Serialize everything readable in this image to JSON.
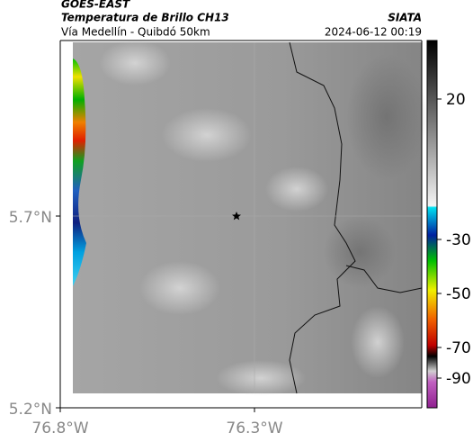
{
  "header": {
    "title": "GOES-EAST",
    "subtitle": "Temperatura de Brillo CH13",
    "location": "Vía Medellín - Quibdó 50km",
    "source": "SIATA",
    "datetime": "2024-06-12 00:19"
  },
  "axes": {
    "y_labels": [
      "5.7°N",
      "5.2°N"
    ],
    "x_labels": [
      "76.8°W",
      "76.3°W"
    ]
  },
  "colorbar": {
    "ticks": [
      20,
      -30,
      -50,
      -70,
      -90
    ]
  }
}
